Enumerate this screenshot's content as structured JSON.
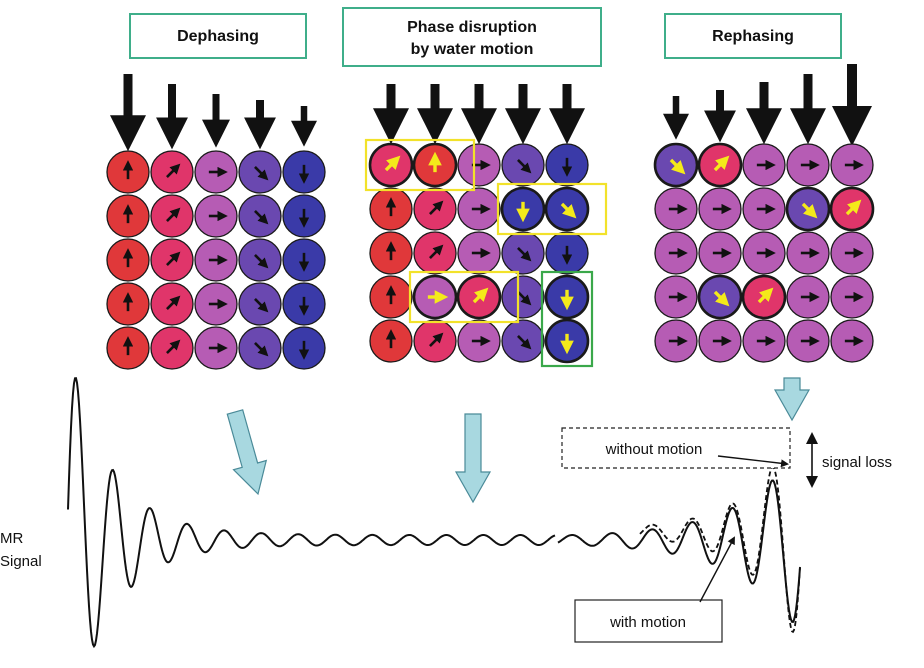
{
  "panels": [
    {
      "id": "dephasing",
      "title_lines": [
        "Dephasing"
      ],
      "field_arrows": [
        "strong",
        "medium",
        "weak",
        "medium",
        "weaker"
      ],
      "grid": [
        [
          "red:90",
          "crimson:45",
          "magenta:0",
          "purple:-45",
          "blue:-90"
        ],
        [
          "red:90",
          "crimson:45",
          "magenta:0",
          "purple:-45",
          "blue:-90"
        ],
        [
          "red:90",
          "crimson:45",
          "magenta:0",
          "purple:-45",
          "blue:-90"
        ],
        [
          "red:90",
          "crimson:45",
          "magenta:0",
          "purple:-45",
          "blue:-90"
        ],
        [
          "red:90",
          "crimson:45",
          "magenta:0",
          "purple:-45",
          "blue:-90"
        ]
      ]
    },
    {
      "id": "phase-disruption",
      "title_lines": [
        "Phase disruption",
        "by water motion"
      ],
      "field_arrows": [
        "strong",
        "strong",
        "strong",
        "strong",
        "strong"
      ],
      "grid": [
        [
          "crimson:45*",
          "red:90*",
          "magenta:0",
          "purple:-45",
          "blue:-90"
        ],
        [
          "red:90",
          "crimson:45",
          "magenta:0",
          "blue:-90*",
          "blue:-45*"
        ],
        [
          "red:90",
          "crimson:45",
          "magenta:0",
          "purple:-45",
          "blue:-90"
        ],
        [
          "red:90",
          "magenta:0*",
          "crimson:45*",
          "purple:-45",
          "blue:-90*"
        ],
        [
          "red:90",
          "crimson:45",
          "magenta:0",
          "purple:-45",
          "blue:-90*"
        ]
      ],
      "highlight_groups": [
        {
          "color": "yellow",
          "cells": [
            [
              0,
              0
            ],
            [
              0,
              1
            ]
          ]
        },
        {
          "color": "yellow",
          "cells": [
            [
              1,
              3
            ],
            [
              1,
              4
            ]
          ]
        },
        {
          "color": "yellow",
          "cells": [
            [
              3,
              1
            ],
            [
              3,
              2
            ]
          ]
        },
        {
          "color": "green",
          "cells": [
            [
              3,
              4
            ],
            [
              4,
              4
            ]
          ]
        }
      ]
    },
    {
      "id": "rephasing",
      "title_lines": [
        "Rephasing"
      ],
      "field_arrows": [
        "weaker",
        "medium",
        "strong",
        "strong",
        "strongest"
      ],
      "grid": [
        [
          "purple:-45*",
          "crimson:45*",
          "magenta:0",
          "magenta:0",
          "magenta:0"
        ],
        [
          "magenta:0",
          "magenta:0",
          "magenta:0",
          "purple:-45*",
          "crimson:45*"
        ],
        [
          "magenta:0",
          "magenta:0",
          "magenta:0",
          "magenta:0",
          "magenta:0"
        ],
        [
          "magenta:0",
          "purple:-45*",
          "crimson:45*",
          "magenta:0",
          "magenta:0"
        ],
        [
          "magenta:0",
          "magenta:0",
          "magenta:0",
          "magenta:0",
          "magenta:0"
        ]
      ]
    }
  ],
  "signal": {
    "axis_label_lines": [
      "MR",
      "Signal"
    ],
    "without_motion_label": "without motion",
    "with_motion_label": "with motion",
    "signal_loss_label": "signal loss"
  },
  "colors": {
    "red": "#e0383a",
    "crimson": "#e0356a",
    "magenta": "#b65cb4",
    "purple": "#6a48b0",
    "blue": "#3a3aa8",
    "title_border": "#3fae8a",
    "highlight_yellow": "#f2e22a",
    "highlight_green": "#3aa84a",
    "flow_arrow": "#a8d8e0",
    "flow_arrow_stroke": "#4a8a98"
  }
}
